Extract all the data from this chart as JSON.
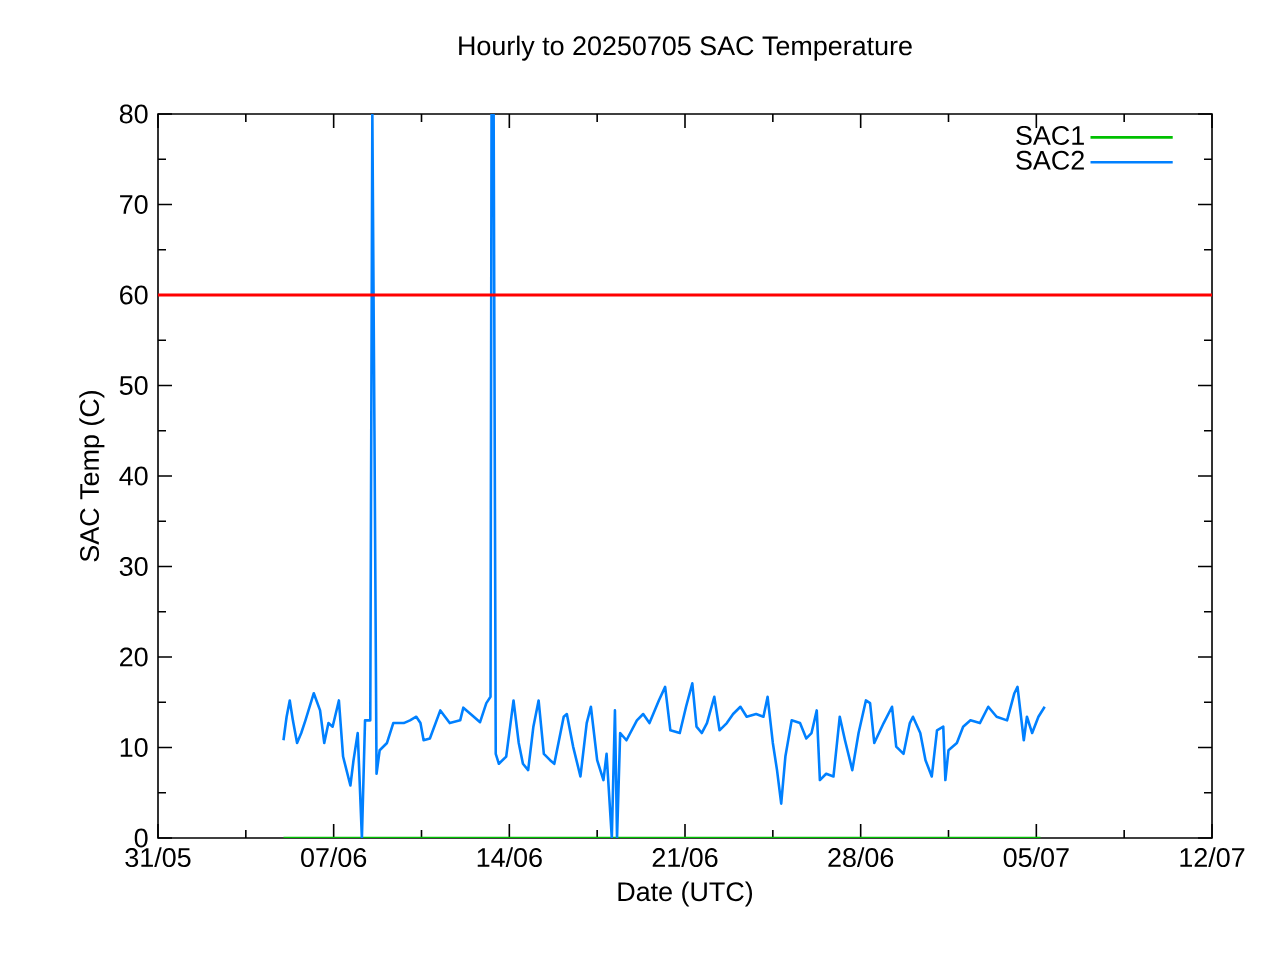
{
  "chart_data": {
    "type": "line",
    "title": "Hourly to 20250705 SAC Temperature",
    "xlabel": "Date (UTC)",
    "ylabel": "SAC Temp (C)",
    "xlim": [
      "2025-05-31",
      "2025-07-12"
    ],
    "ylim": [
      0,
      80
    ],
    "xticks": [
      {
        "value": "2025-05-31",
        "label": "31/05"
      },
      {
        "value": "2025-06-07",
        "label": "07/06"
      },
      {
        "value": "2025-06-14",
        "label": "14/06"
      },
      {
        "value": "2025-06-21",
        "label": "21/06"
      },
      {
        "value": "2025-06-28",
        "label": "28/06"
      },
      {
        "value": "2025-07-05",
        "label": "05/07"
      },
      {
        "value": "2025-07-12",
        "label": "12/07"
      }
    ],
    "yticks": [
      0,
      10,
      20,
      30,
      40,
      50,
      60,
      70,
      80
    ],
    "legend": "top right",
    "ref_lines": [
      {
        "axis": "y",
        "value": 60,
        "color": "#ff0000"
      }
    ],
    "series": [
      {
        "name": "SAC1",
        "color": "#00c000",
        "x": [
          "2025-06-05T00:00",
          "2025-07-05T04:00"
        ],
        "values": [
          0,
          0
        ]
      },
      {
        "name": "SAC2",
        "color": "#0080ff",
        "x": [
          "2025-06-05T00:00",
          "2025-06-05T03:00",
          "2025-06-05T06:00",
          "2025-06-05T09:00",
          "2025-06-05T13:00",
          "2025-06-05T17:00",
          "2025-06-05T21:00",
          "2025-06-06T05:00",
          "2025-06-06T11:00",
          "2025-06-06T15:00",
          "2025-06-06T19:00",
          "2025-06-06T23:00",
          "2025-06-07T05:00",
          "2025-06-07T09:00",
          "2025-06-07T16:00",
          "2025-06-07T19:00",
          "2025-06-07T23:00",
          "2025-06-08T03:00",
          "2025-06-08T06:00",
          "2025-06-08T11:00",
          "2025-06-08T13:00",
          "2025-06-08T15:00",
          "2025-06-08T17:00",
          "2025-06-08T20:00",
          "2025-06-09T03:00",
          "2025-06-09T09:00",
          "2025-06-09T19:00",
          "2025-06-10T01:00",
          "2025-06-10T07:00",
          "2025-06-10T11:00",
          "2025-06-10T14:00",
          "2025-06-10T20:00",
          "2025-06-11T06:00",
          "2025-06-11T15:00",
          "2025-06-12T01:00",
          "2025-06-12T04:00",
          "2025-06-12T14:00",
          "2025-06-12T20:00",
          "2025-06-13T02:00",
          "2025-06-13T06:00",
          "2025-06-13T07:00",
          "2025-06-13T09:00",
          "2025-06-13T11:00",
          "2025-06-13T14:00",
          "2025-06-13T21:00",
          "2025-06-14T04:00",
          "2025-06-14T09:00",
          "2025-06-14T13:00",
          "2025-06-14T18:00",
          "2025-06-14T23:00",
          "2025-06-15T04:00",
          "2025-06-15T09:00",
          "2025-06-15T15:00",
          "2025-06-15T19:00",
          "2025-06-16T04:00",
          "2025-06-16T07:00",
          "2025-06-16T13:00",
          "2025-06-16T20:00",
          "2025-06-17T02:00",
          "2025-06-17T06:00",
          "2025-06-17T12:00",
          "2025-06-17T18:00",
          "2025-06-17T21:00",
          "2025-06-18T02:00",
          "2025-06-18T05:00",
          "2025-06-18T07:00",
          "2025-06-18T10:00",
          "2025-06-18T16:00",
          "2025-06-19T02:00",
          "2025-06-19T08:00",
          "2025-06-19T14:00",
          "2025-06-19T23:00",
          "2025-06-20T05:00",
          "2025-06-20T10:00",
          "2025-06-20T19:00",
          "2025-06-21T01:00",
          "2025-06-21T07:00",
          "2025-06-21T11:00",
          "2025-06-21T16:00",
          "2025-06-21T21:00",
          "2025-06-22T04:00",
          "2025-06-22T09:00",
          "2025-06-22T16:00",
          "2025-06-22T22:00",
          "2025-06-23T05:00",
          "2025-06-23T11:00",
          "2025-06-23T20:00",
          "2025-06-24T03:00",
          "2025-06-24T07:00",
          "2025-06-24T12:00",
          "2025-06-24T16:00",
          "2025-06-24T20:00",
          "2025-06-25T00:00",
          "2025-06-25T06:00",
          "2025-06-25T14:00",
          "2025-06-25T20:00",
          "2025-06-26T01:00",
          "2025-06-26T06:00",
          "2025-06-26T09:00",
          "2025-06-26T15:00",
          "2025-06-26T22:00",
          "2025-06-27T04:00",
          "2025-06-27T09:00",
          "2025-06-27T16:00",
          "2025-06-27T22:00",
          "2025-06-28T05:00",
          "2025-06-28T09:00",
          "2025-06-28T13:00",
          "2025-06-28T22:00",
          "2025-06-29T06:00",
          "2025-06-29T10:00",
          "2025-06-29T17:00",
          "2025-06-29T23:00",
          "2025-06-30T02:00",
          "2025-06-30T09:00",
          "2025-06-30T14:00",
          "2025-06-30T20:00",
          "2025-07-01T01:00",
          "2025-07-01T07:00",
          "2025-07-01T09:00",
          "2025-07-01T12:00",
          "2025-07-01T20:00",
          "2025-07-02T02:00",
          "2025-07-02T09:00",
          "2025-07-02T18:00",
          "2025-07-03T02:00",
          "2025-07-03T10:00",
          "2025-07-03T20:00",
          "2025-07-04T03:00",
          "2025-07-04T06:00",
          "2025-07-04T12:00",
          "2025-07-04T15:00",
          "2025-07-04T20:00",
          "2025-07-05T02:00",
          "2025-07-05T08:00"
        ],
        "values": [
          10.8,
          13.4,
          15.2,
          13.0,
          10.5,
          11.6,
          13.0,
          16.0,
          14.1,
          10.5,
          12.7,
          12.3,
          15.2,
          9.0,
          5.8,
          8.6,
          11.6,
          0,
          13.0,
          13.0,
          80,
          45,
          7.1,
          9.7,
          10.5,
          12.7,
          12.7,
          13.0,
          13.4,
          12.7,
          10.8,
          11.0,
          14.1,
          12.7,
          13.0,
          14.4,
          13.4,
          12.8,
          14.9,
          15.6,
          80,
          80,
          9.3,
          8.2,
          9.0,
          15.2,
          10.5,
          8.2,
          7.5,
          12.3,
          15.2,
          9.3,
          8.6,
          8.2,
          13.4,
          13.7,
          10.1,
          6.8,
          12.7,
          14.5,
          8.6,
          6.4,
          9.3,
          0,
          14.1,
          0,
          11.6,
          10.8,
          13.0,
          13.7,
          12.7,
          15.2,
          16.7,
          11.9,
          11.6,
          14.5,
          17.1,
          12.3,
          11.6,
          12.7,
          15.6,
          11.9,
          12.7,
          13.7,
          14.5,
          13.4,
          13.7,
          13.4,
          15.6,
          10.5,
          7.5,
          3.8,
          9.0,
          13.0,
          12.7,
          11.0,
          11.6,
          14.1,
          6.4,
          7.1,
          6.8,
          13.4,
          10.8,
          7.5,
          11.6,
          15.2,
          14.9,
          10.5,
          12.7,
          14.5,
          10.1,
          9.3,
          12.7,
          13.4,
          11.6,
          8.6,
          6.8,
          11.9,
          12.3,
          6.4,
          9.7,
          10.5,
          12.3,
          13.0,
          12.7,
          14.5,
          13.4,
          13.0,
          16.0,
          16.7,
          10.8,
          13.4,
          11.6,
          13.4,
          14.5
        ]
      }
    ]
  }
}
